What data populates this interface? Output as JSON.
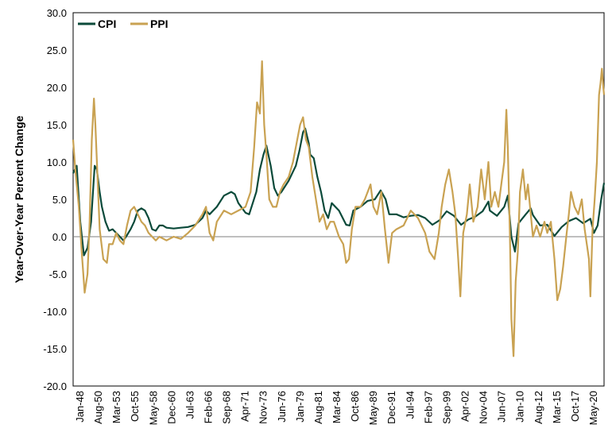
{
  "colors": {
    "cpi": "#0b4a3a",
    "ppi": "#c9a252",
    "zero_line": "#7f7f7f",
    "frame": "#000000"
  },
  "chart_data": {
    "type": "line",
    "title": "",
    "xlabel": "",
    "ylabel": "Year-Over-Year Percent Change",
    "ylim": [
      -20,
      30
    ],
    "yticks": [
      "30.0",
      "25.0",
      "20.0",
      "15.0",
      "10.0",
      "5.0",
      "0.0",
      "-5.0",
      "-10.0",
      "-15.0",
      "-20.0"
    ],
    "xlim": [
      1948.0,
      2021.9
    ],
    "xticks": [
      "Jan-48",
      "Aug-50",
      "Mar-53",
      "Oct-55",
      "May-58",
      "Dec-60",
      "Jul-63",
      "Feb-66",
      "Sep-68",
      "Apr-71",
      "Nov-73",
      "Jun-76",
      "Jan-79",
      "Aug-81",
      "Mar-84",
      "Oct-86",
      "May-89",
      "Dec-91",
      "Jul-94",
      "Feb-97",
      "Sep-99",
      "Apr-02",
      "Nov-04",
      "Jun-07",
      "Jan-10",
      "Aug-12",
      "Mar-15",
      "Oct-17",
      "May-20"
    ],
    "legend": {
      "position": "top-left"
    },
    "grid": false,
    "series": [
      {
        "name": "CPI",
        "color": "#0b4a3a",
        "x": [
          1948.0,
          1948.5,
          1949.0,
          1949.5,
          1950.0,
          1950.5,
          1951.0,
          1951.3,
          1951.7,
          1952.0,
          1952.5,
          1953.0,
          1953.5,
          1954.0,
          1954.5,
          1955.0,
          1955.5,
          1956.0,
          1956.5,
          1957.0,
          1957.5,
          1958.0,
          1958.5,
          1959.0,
          1959.5,
          1960.0,
          1960.5,
          1961.0,
          1962.0,
          1963.0,
          1964.0,
          1965.0,
          1966.0,
          1966.5,
          1967.0,
          1968.0,
          1969.0,
          1970.0,
          1970.5,
          1971.0,
          1972.0,
          1972.5,
          1973.0,
          1973.5,
          1974.0,
          1974.5,
          1974.9,
          1975.5,
          1976.0,
          1976.5,
          1977.0,
          1978.0,
          1979.0,
          1979.5,
          1980.0,
          1980.3,
          1980.8,
          1981.0,
          1981.5,
          1982.0,
          1982.5,
          1983.0,
          1983.5,
          1984.0,
          1985.0,
          1986.0,
          1986.5,
          1987.0,
          1988.0,
          1989.0,
          1990.0,
          1990.8,
          1991.5,
          1992.0,
          1993.0,
          1994.0,
          1995.0,
          1996.0,
          1997.0,
          1998.0,
          1999.0,
          2000.0,
          2001.0,
          2002.0,
          2003.0,
          2004.0,
          2005.0,
          2005.8,
          2006.0,
          2007.0,
          2008.0,
          2008.5,
          2009.0,
          2009.5,
          2010.0,
          2011.0,
          2011.7,
          2012.0,
          2013.0,
          2014.0,
          2015.0,
          2016.0,
          2017.0,
          2018.0,
          2019.0,
          2020.0,
          2020.5,
          2021.0,
          2021.5,
          2021.9
        ],
        "y": [
          8.5,
          9.5,
          2.0,
          -2.5,
          -1.5,
          2.0,
          9.5,
          9.0,
          6.0,
          4.0,
          2.0,
          0.8,
          1.0,
          0.5,
          0.0,
          -0.5,
          0.2,
          1.0,
          2.0,
          3.5,
          3.8,
          3.5,
          2.5,
          1.0,
          0.8,
          1.5,
          1.5,
          1.2,
          1.1,
          1.2,
          1.3,
          1.6,
          2.5,
          3.5,
          3.0,
          4.0,
          5.5,
          6.0,
          5.7,
          4.5,
          3.2,
          3.0,
          4.5,
          6.0,
          9.0,
          11.0,
          12.2,
          9.5,
          6.5,
          5.5,
          6.0,
          7.5,
          9.5,
          11.5,
          14.0,
          14.5,
          12.5,
          11.0,
          10.5,
          8.0,
          6.0,
          3.5,
          2.5,
          4.5,
          3.5,
          1.6,
          1.5,
          3.5,
          4.0,
          4.8,
          5.0,
          6.2,
          5.0,
          3.0,
          3.0,
          2.6,
          2.8,
          2.9,
          2.5,
          1.6,
          2.2,
          3.4,
          2.8,
          1.6,
          2.3,
          2.7,
          3.4,
          4.7,
          3.5,
          2.8,
          4.0,
          5.5,
          0.0,
          -2.0,
          1.8,
          3.0,
          3.8,
          2.9,
          1.5,
          1.6,
          0.1,
          1.3,
          2.1,
          2.5,
          1.8,
          2.4,
          0.5,
          1.5,
          5.0,
          7.2
        ]
      },
      {
        "name": "PPI",
        "color": "#c9a252",
        "x": [
          1948.0,
          1948.3,
          1948.8,
          1949.2,
          1949.6,
          1950.0,
          1950.3,
          1950.6,
          1950.9,
          1951.1,
          1951.4,
          1951.7,
          1952.2,
          1952.7,
          1953.0,
          1953.5,
          1954.0,
          1954.5,
          1955.0,
          1955.5,
          1956.0,
          1956.5,
          1957.0,
          1957.5,
          1958.0,
          1958.5,
          1959.0,
          1959.5,
          1960.0,
          1961.0,
          1962.0,
          1963.0,
          1964.0,
          1965.0,
          1966.0,
          1966.5,
          1967.0,
          1967.5,
          1968.0,
          1969.0,
          1970.0,
          1971.0,
          1972.0,
          1972.7,
          1973.2,
          1973.6,
          1974.0,
          1974.3,
          1974.6,
          1974.9,
          1975.3,
          1975.8,
          1976.3,
          1976.8,
          1977.3,
          1978.0,
          1978.6,
          1979.2,
          1979.6,
          1980.0,
          1980.4,
          1980.8,
          1981.3,
          1981.8,
          1982.3,
          1982.8,
          1983.3,
          1983.8,
          1984.3,
          1985.0,
          1985.6,
          1986.0,
          1986.4,
          1986.8,
          1987.3,
          1988.0,
          1988.6,
          1989.0,
          1989.4,
          1989.8,
          1990.3,
          1990.9,
          1991.4,
          1991.9,
          1992.4,
          1993.0,
          1994.0,
          1995.0,
          1996.0,
          1997.0,
          1997.6,
          1998.3,
          1998.9,
          1999.3,
          1999.8,
          2000.3,
          2000.8,
          2001.2,
          2001.6,
          2001.9,
          2002.3,
          2002.8,
          2003.2,
          2003.7,
          2004.3,
          2004.8,
          2005.3,
          2005.8,
          2006.2,
          2006.7,
          2007.2,
          2007.6,
          2008.0,
          2008.3,
          2008.5,
          2008.8,
          2009.0,
          2009.3,
          2009.6,
          2009.9,
          2010.2,
          2010.6,
          2011.0,
          2011.3,
          2011.7,
          2012.0,
          2012.5,
          2013.0,
          2013.6,
          2014.0,
          2014.5,
          2015.0,
          2015.4,
          2015.8,
          2016.2,
          2016.7,
          2017.0,
          2017.3,
          2017.8,
          2018.3,
          2018.8,
          2019.2,
          2019.5,
          2019.8,
          2020.0,
          2020.3,
          2020.6,
          2020.9,
          2021.2,
          2021.4,
          2021.6,
          2021.8,
          2021.9
        ],
        "y": [
          13.0,
          9.0,
          4.0,
          -2.0,
          -7.5,
          -5.0,
          2.0,
          13.0,
          18.5,
          15.0,
          8.0,
          1.0,
          -3.0,
          -3.5,
          -1.0,
          -1.0,
          0.5,
          -0.5,
          -1.0,
          1.5,
          3.5,
          4.0,
          3.0,
          2.0,
          1.5,
          0.5,
          0.0,
          -0.5,
          0.0,
          -0.5,
          0.0,
          -0.3,
          0.5,
          1.5,
          3.0,
          4.0,
          0.5,
          -0.5,
          2.0,
          3.5,
          3.0,
          3.5,
          4.0,
          6.0,
          12.0,
          18.0,
          16.5,
          23.5,
          15.0,
          11.0,
          5.0,
          4.0,
          4.0,
          6.0,
          7.0,
          8.0,
          10.0,
          13.0,
          15.0,
          16.0,
          13.0,
          12.0,
          8.0,
          5.0,
          2.0,
          3.0,
          1.0,
          2.0,
          2.0,
          0.0,
          -1.0,
          -3.5,
          -3.0,
          1.0,
          4.0,
          4.0,
          5.0,
          6.0,
          7.0,
          4.0,
          3.0,
          6.0,
          1.0,
          -3.5,
          0.5,
          1.0,
          1.5,
          3.5,
          2.5,
          0.5,
          -2.0,
          -3.0,
          0.5,
          4.0,
          7.0,
          9.0,
          6.0,
          3.0,
          -3.0,
          -8.0,
          0.5,
          3.0,
          7.0,
          2.0,
          4.0,
          9.0,
          5.0,
          10.0,
          4.0,
          6.0,
          4.0,
          7.0,
          10.0,
          17.0,
          12.0,
          0.0,
          -11.0,
          -16.0,
          -6.0,
          -2.0,
          6.0,
          9.0,
          5.0,
          7.0,
          3.0,
          0.0,
          1.5,
          0.0,
          2.0,
          0.5,
          2.0,
          -3.0,
          -8.5,
          -7.0,
          -4.0,
          0.5,
          3.0,
          6.0,
          4.0,
          3.0,
          5.0,
          1.0,
          -1.0,
          -3.0,
          -8.0,
          1.0,
          5.0,
          10.0,
          19.0,
          20.5,
          22.5,
          20.0,
          19.0
        ]
      }
    ]
  }
}
